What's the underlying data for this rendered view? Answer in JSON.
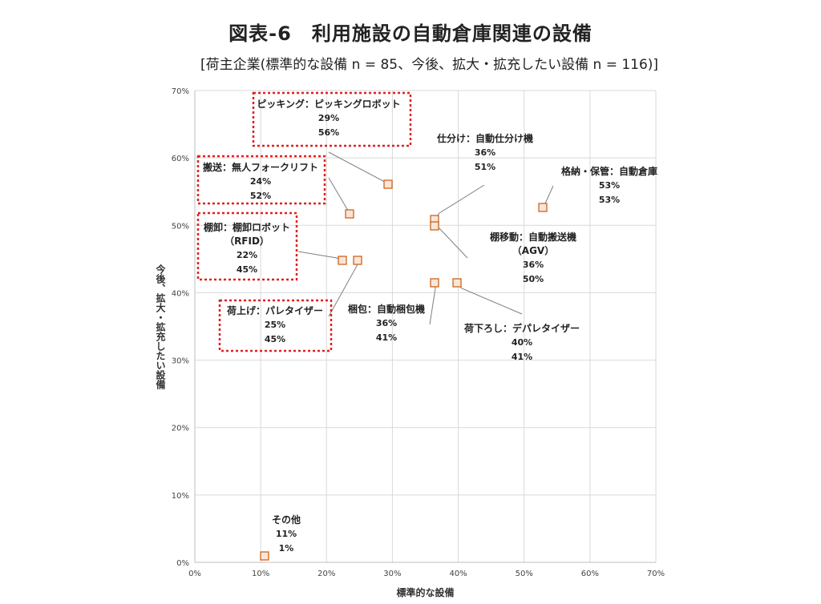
{
  "title": "図表-6　利用施設の自動倉庫関連の設備",
  "subtitle": "[荷主企業(標準的な設備 n = 85、今後、拡大・拡充したい設備 n = 116)]",
  "chart_data": {
    "type": "scatter",
    "xlabel": "標準的な設備",
    "ylabel": "今後、拡大・拡充したい設備",
    "xlim": [
      0,
      70
    ],
    "ylim": [
      0,
      70
    ],
    "grid": true,
    "x_ticks": [
      "0%",
      "10%",
      "20%",
      "30%",
      "40%",
      "50%",
      "60%",
      "70%"
    ],
    "y_ticks": [
      "0%",
      "10%",
      "20%",
      "30%",
      "40%",
      "50%",
      "60%",
      "70%"
    ],
    "marker_color": "#c55a11",
    "marker_fill": "#fbe5d6",
    "highlight_color": "#e02020",
    "points": [
      {
        "label": "ピッキング：ピッキングロボット",
        "x": 29,
        "y": 56,
        "x_text": "29%",
        "y_text": "56%",
        "highlight": true
      },
      {
        "label": "仕分け：自動仕分け機",
        "x": 36,
        "y": 51,
        "x_text": "36%",
        "y_text": "51%",
        "highlight": false
      },
      {
        "label": "格納・保管：自動倉庫",
        "x": 53,
        "y": 53,
        "x_text": "53%",
        "y_text": "53%",
        "highlight": false
      },
      {
        "label": "搬送：無人フォークリフト",
        "x": 24,
        "y": 52,
        "x_text": "24%",
        "y_text": "52%",
        "highlight": true
      },
      {
        "label": "棚卸：棚卸ロボット",
        "sublabel": "（RFID）",
        "x": 22,
        "y": 45,
        "x_text": "22%",
        "y_text": "45%",
        "highlight": true
      },
      {
        "label": "棚移動：自動搬送機",
        "sublabel": "（AGV）",
        "x": 36,
        "y": 50,
        "x_text": "36%",
        "y_text": "50%",
        "highlight": false
      },
      {
        "label": "荷上げ：パレタイザー",
        "x": 25,
        "y": 45,
        "x_text": "25%",
        "y_text": "45%",
        "highlight": true
      },
      {
        "label": "梱包：自動梱包機",
        "x": 36,
        "y": 41,
        "x_text": "36%",
        "y_text": "41%",
        "highlight": false
      },
      {
        "label": "荷下ろし：デパレタイザー",
        "x": 40,
        "y": 41,
        "x_text": "40%",
        "y_text": "41%",
        "highlight": false
      },
      {
        "label": "その他",
        "x": 11,
        "y": 1,
        "x_text": "11%",
        "y_text": "1%",
        "highlight": false
      }
    ]
  }
}
